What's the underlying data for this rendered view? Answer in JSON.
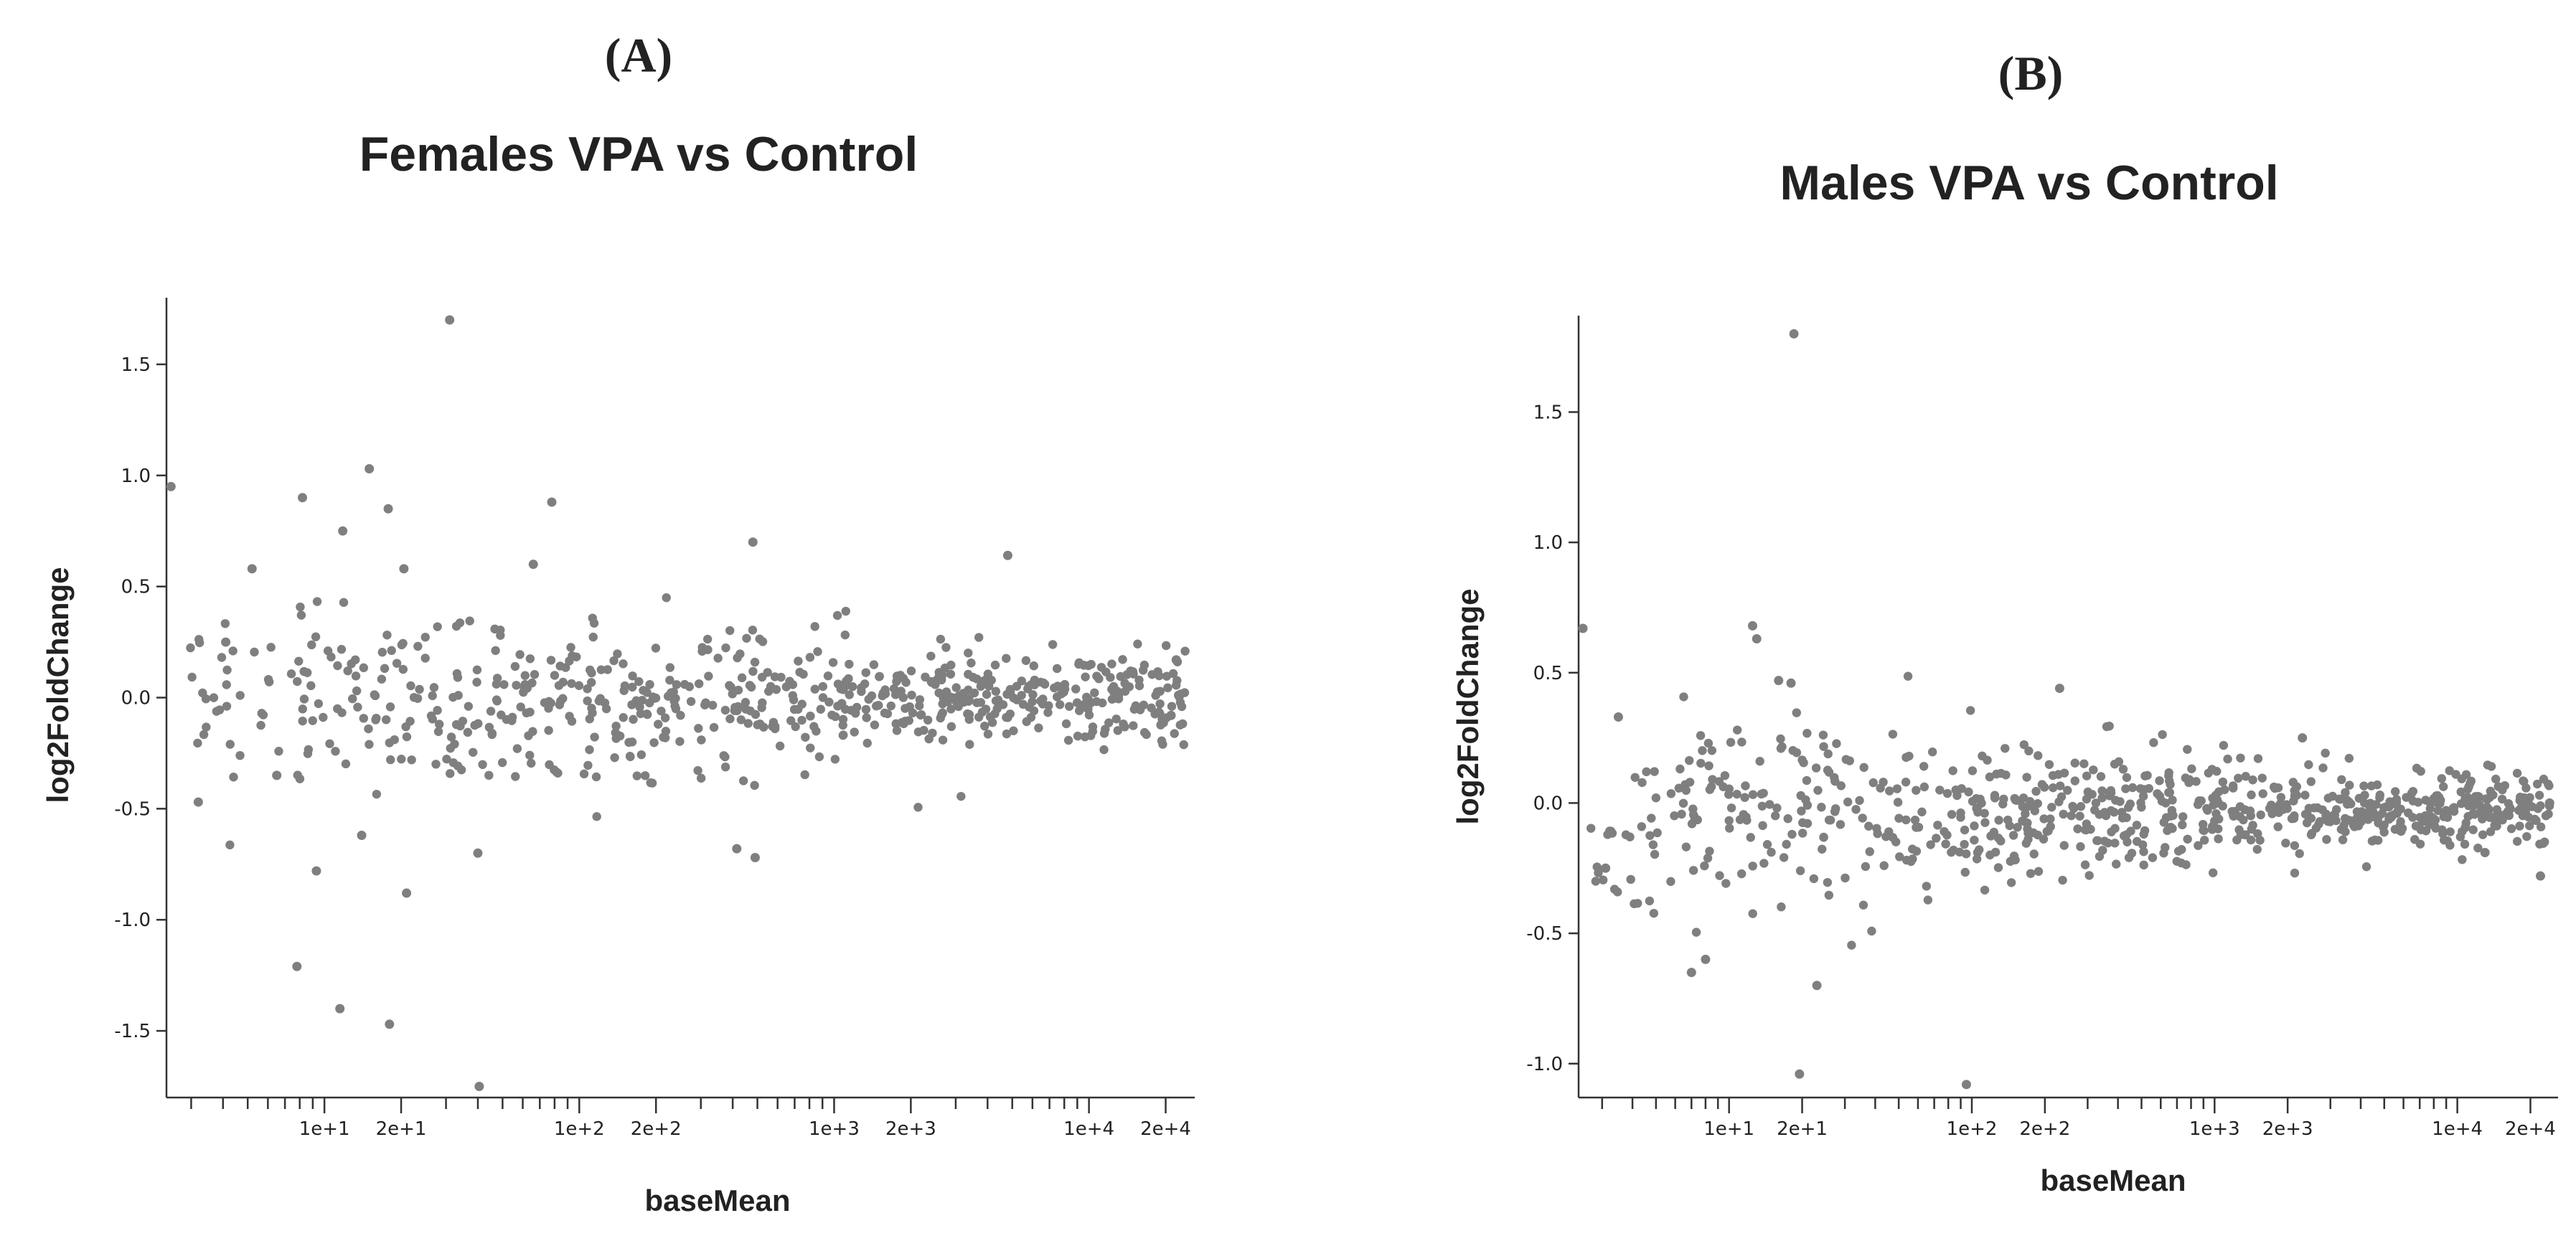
{
  "chart_data": [
    {
      "type": "scatter",
      "panel_label": "(A)",
      "title": "Females VPA vs Control",
      "xlabel": "baseMean",
      "ylabel": "log2FoldChange",
      "xscale": "log",
      "xlim": [
        2.4,
        26000
      ],
      "ylim": [
        -1.8,
        1.8
      ],
      "yticks": [
        1.5,
        1.0,
        0.5,
        0.0,
        -0.5,
        -1.0,
        -1.5
      ],
      "ytick_labels": [
        "1.5",
        "1.0",
        "0.5",
        "0.0",
        "-0.5",
        "-1.0",
        "-1.5"
      ],
      "xticks_labeled": [
        10,
        20,
        100,
        200,
        1000,
        2000,
        10000,
        20000
      ],
      "xtick_labels": [
        "1e+1",
        "2e+1",
        "1e+2",
        "2e+2",
        "1e+3",
        "2e+3",
        "1e+4",
        "2e+4"
      ],
      "notable_points": [
        {
          "x": 2.5,
          "y": 0.95
        },
        {
          "x": 3.2,
          "y": -0.47
        },
        {
          "x": 4.1,
          "y": 0.25
        },
        {
          "x": 5.2,
          "y": 0.58
        },
        {
          "x": 6.5,
          "y": -0.35
        },
        {
          "x": 8.2,
          "y": 0.9
        },
        {
          "x": 7.8,
          "y": -1.21
        },
        {
          "x": 9.3,
          "y": -0.78
        },
        {
          "x": 11.8,
          "y": 0.75
        },
        {
          "x": 11.5,
          "y": -1.4
        },
        {
          "x": 15.0,
          "y": 1.03
        },
        {
          "x": 14.0,
          "y": -0.62
        },
        {
          "x": 17.8,
          "y": 0.85
        },
        {
          "x": 18.0,
          "y": -1.47
        },
        {
          "x": 20.5,
          "y": 0.58
        },
        {
          "x": 21.0,
          "y": -0.88
        },
        {
          "x": 31.0,
          "y": 1.7
        },
        {
          "x": 40.0,
          "y": -0.7
        },
        {
          "x": 40.5,
          "y": -1.75
        },
        {
          "x": 78.0,
          "y": 0.88
        },
        {
          "x": 66.0,
          "y": 0.6
        },
        {
          "x": 480.0,
          "y": 0.7
        },
        {
          "x": 415.0,
          "y": -0.68
        },
        {
          "x": 490.0,
          "y": -0.72
        },
        {
          "x": 4800.0,
          "y": 0.64
        },
        {
          "x": 22000.0,
          "y": 0.17
        },
        {
          "x": 21000.0,
          "y": -0.08
        }
      ],
      "bulk_points": {
        "count": 700,
        "x_range": [
          2.6,
          24000
        ],
        "y_center": 0.0,
        "y_spread_at_low_x": 0.55,
        "y_spread_at_high_x": 0.22
      }
    },
    {
      "type": "scatter",
      "panel_label": "(B)",
      "title": "Males VPA vs Control",
      "xlabel": "baseMean",
      "ylabel": "log2FoldChange",
      "xscale": "log",
      "xlim": [
        2.4,
        26000
      ],
      "ylim": [
        -1.13,
        1.87
      ],
      "yticks": [
        1.5,
        1.0,
        0.5,
        0.0,
        -0.5,
        -1.0
      ],
      "ytick_labels": [
        "1.5",
        "1.0",
        "0.5",
        "0.0",
        "-0.5",
        "-1.0"
      ],
      "xticks_labeled": [
        10,
        20,
        100,
        200,
        1000,
        2000,
        10000,
        20000
      ],
      "xtick_labels": [
        "1e+1",
        "2e+1",
        "1e+2",
        "2e+2",
        "1e+3",
        "2e+3",
        "1e+4",
        "2e+4"
      ],
      "notable_points": [
        {
          "x": 2.5,
          "y": 0.67
        },
        {
          "x": 3.1,
          "y": -0.25
        },
        {
          "x": 3.5,
          "y": 0.33
        },
        {
          "x": 7.0,
          "y": -0.65
        },
        {
          "x": 8.0,
          "y": -0.6
        },
        {
          "x": 12.5,
          "y": 0.68
        },
        {
          "x": 13.0,
          "y": 0.63
        },
        {
          "x": 16.0,
          "y": 0.47
        },
        {
          "x": 18.5,
          "y": 1.8
        },
        {
          "x": 18.0,
          "y": 0.46
        },
        {
          "x": 19.5,
          "y": -1.04
        },
        {
          "x": 23.0,
          "y": -0.7
        },
        {
          "x": 95.0,
          "y": -1.08
        },
        {
          "x": 230.0,
          "y": 0.44
        },
        {
          "x": 2300.0,
          "y": 0.25
        },
        {
          "x": 22000.0,
          "y": -0.28
        },
        {
          "x": 24000.0,
          "y": 0.0
        },
        {
          "x": 13000.0,
          "y": -0.19
        }
      ],
      "bulk_points": {
        "count": 800,
        "x_range": [
          2.6,
          24000
        ],
        "y_center": -0.03,
        "y_spread_at_low_x": 0.45,
        "y_spread_at_high_x": 0.16
      }
    }
  ]
}
